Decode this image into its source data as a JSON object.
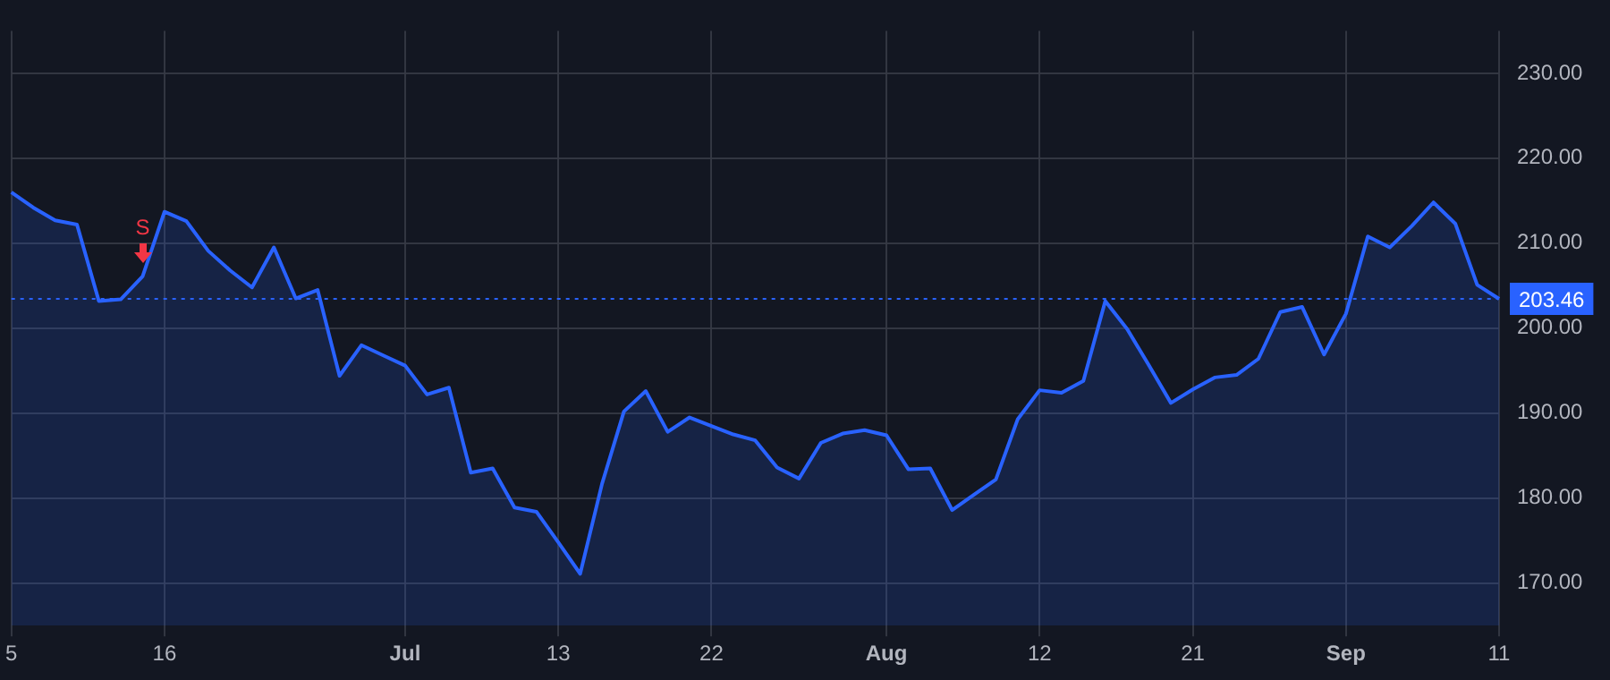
{
  "chart_data": {
    "type": "area",
    "categories": [
      "5",
      null,
      null,
      null,
      null,
      null,
      null,
      "16",
      null,
      null,
      null,
      null,
      null,
      null,
      null,
      null,
      null,
      null,
      "Jul",
      null,
      null,
      null,
      null,
      null,
      null,
      "13",
      null,
      null,
      null,
      null,
      null,
      null,
      "22",
      null,
      null,
      null,
      null,
      null,
      null,
      null,
      "Aug",
      null,
      null,
      null,
      null,
      null,
      null,
      "12",
      null,
      null,
      null,
      null,
      null,
      null,
      "21",
      null,
      null,
      null,
      null,
      null,
      null,
      "Sep",
      null,
      null,
      null,
      null,
      null,
      null,
      "11"
    ],
    "series": [
      {
        "color": "#2962ff",
        "values": [
          216.0,
          214.2,
          212.7,
          212.2,
          203.2,
          203.4,
          206.1,
          213.7,
          212.6,
          209.1,
          206.8,
          204.8,
          209.5,
          203.5,
          204.5,
          194.4,
          198.0,
          196.8,
          195.6,
          192.2,
          193.0,
          183.0,
          183.5,
          178.9,
          178.4,
          174.8,
          171.1,
          181.7,
          190.2,
          192.6,
          187.8,
          189.5,
          188.5,
          187.5,
          186.8,
          183.6,
          182.3,
          186.5,
          187.6,
          188.0,
          187.4,
          183.4,
          183.5,
          178.6,
          180.4,
          182.2,
          189.3,
          192.7,
          192.4,
          193.8,
          203.2,
          199.9,
          195.6,
          191.2,
          192.8,
          194.2,
          194.5,
          196.4,
          201.9,
          202.5,
          196.9,
          201.7,
          210.8,
          209.5,
          212.0,
          214.8,
          212.3,
          205.1,
          203.46
        ]
      }
    ],
    "ylim": [
      165,
      235
    ],
    "yticks": [
      {
        "value": 170,
        "label": "170.00"
      },
      {
        "value": 180,
        "label": "180.00"
      },
      {
        "value": 190,
        "label": "190.00"
      },
      {
        "value": 200,
        "label": "200.00"
      },
      {
        "value": 210,
        "label": "210.00"
      },
      {
        "value": 220,
        "label": "220.00"
      },
      {
        "value": 230,
        "label": "230.00"
      }
    ],
    "grid": true,
    "legend": false,
    "marker": "none",
    "line_style": "solid",
    "ref_lines": [
      {
        "axis": "y",
        "value": 203.46,
        "label": "203.46",
        "color": "#2962ff",
        "line_style": "dotted"
      }
    ],
    "annotations": [
      "S"
    ]
  }
}
